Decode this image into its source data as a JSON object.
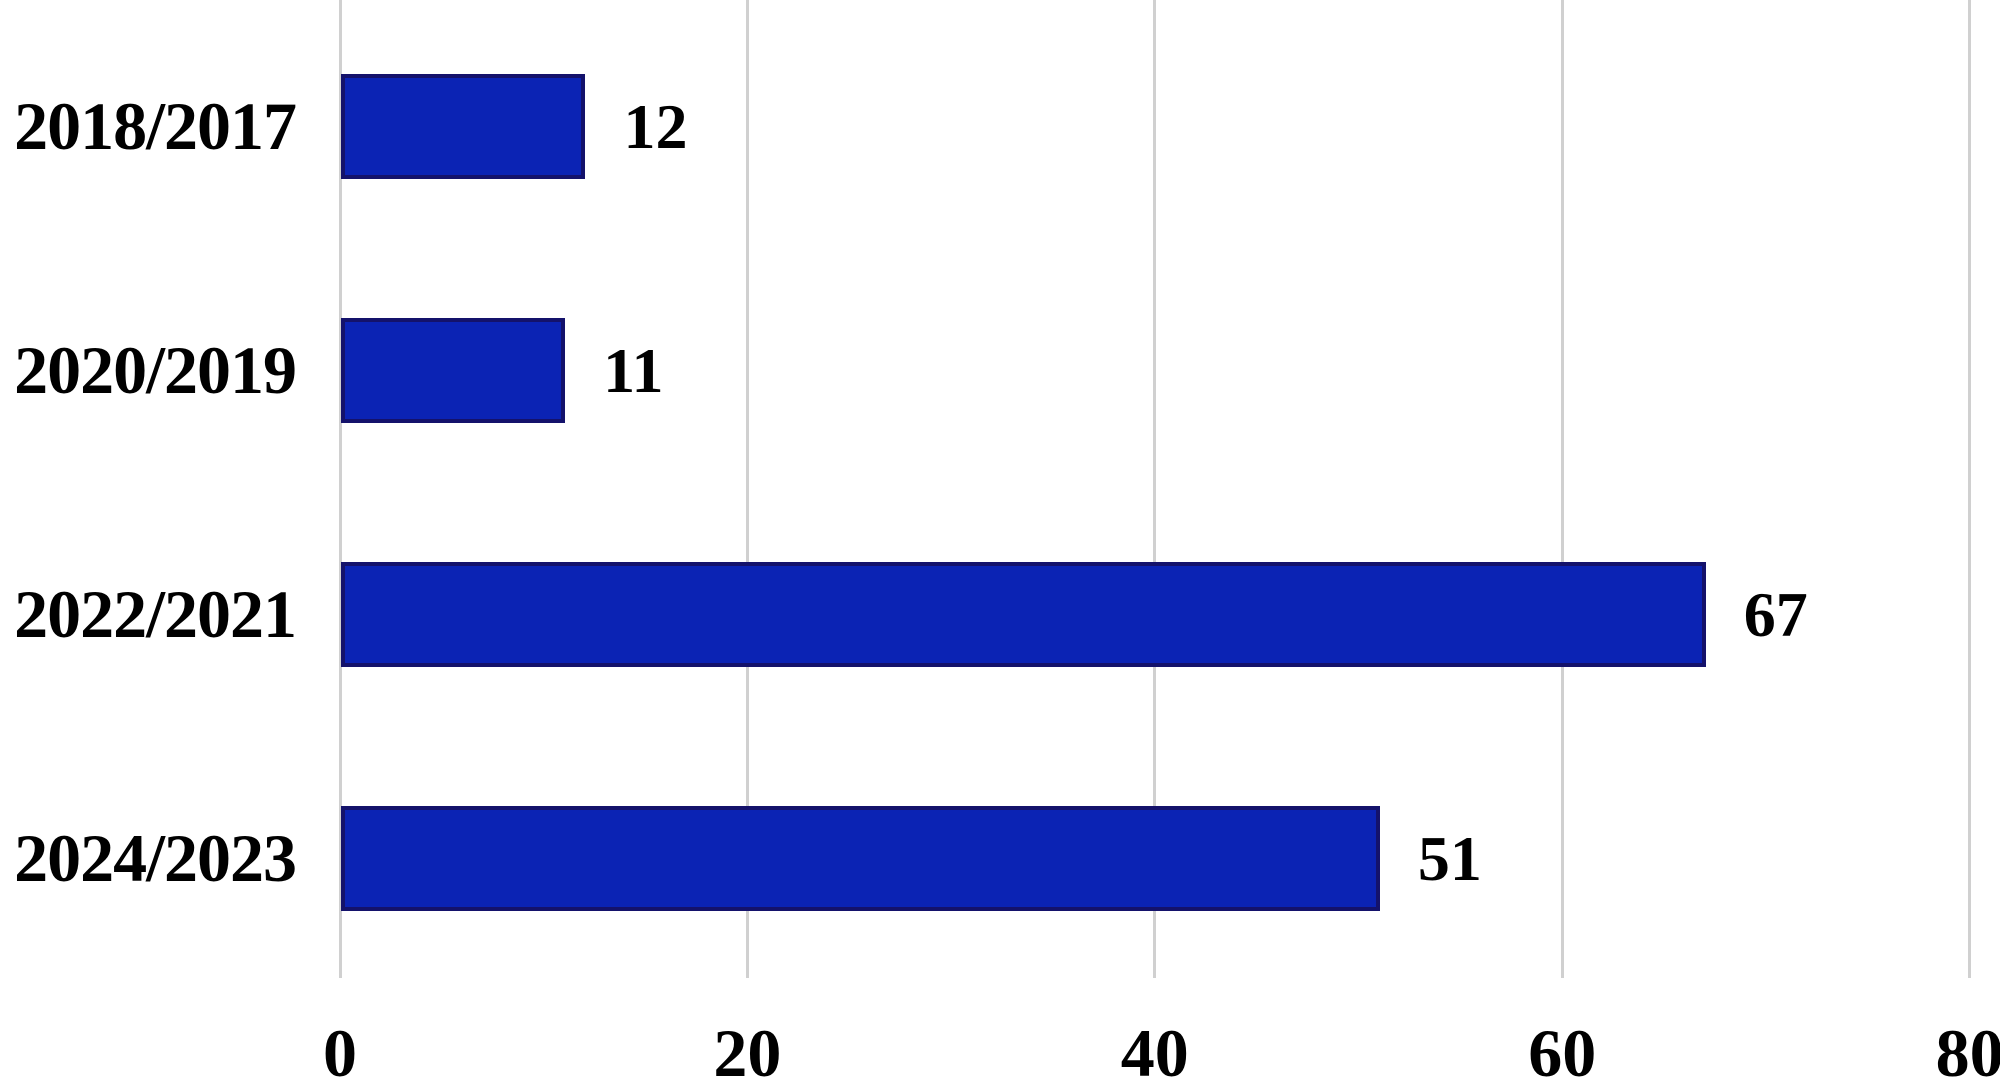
{
  "chart_data": {
    "type": "bar",
    "orientation": "horizontal",
    "title": "",
    "categories": [
      "2018/2017",
      "2020/2019",
      "2022/2021",
      "2024/2023"
    ],
    "values": [
      12,
      11,
      67,
      51
    ],
    "data_labels": [
      "12",
      "11",
      "67",
      "51"
    ],
    "x_ticks": [
      0,
      20,
      40,
      60,
      80
    ],
    "x_tick_labels": [
      "0",
      "20",
      "40",
      "60",
      "80"
    ],
    "xlim": [
      0,
      80
    ],
    "xlabel": "",
    "ylabel": "",
    "grid": "vertical-gridlines-only",
    "legend": "none",
    "colors": {
      "bar_fill": "#0b23b4",
      "bar_border": "#14126b",
      "gridline": "#d0d0d0",
      "text": "#000000",
      "background": "#ffffff"
    }
  }
}
